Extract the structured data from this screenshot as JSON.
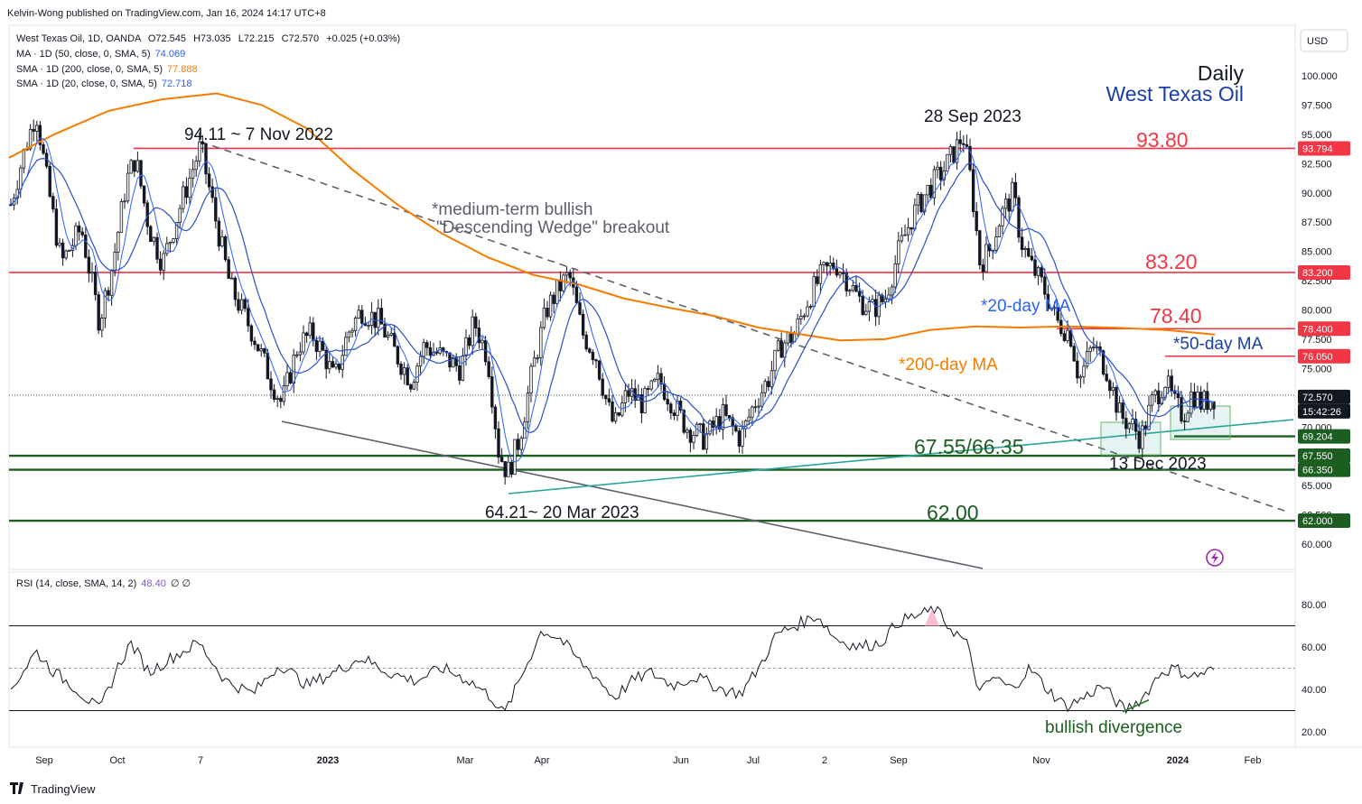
{
  "header": {
    "published": "Kelvin-Wong published on TradingView.com, Jan 16, 2024 14:17 UTC+8",
    "symbol_line": "West Texas Oil, 1D, OANDA",
    "ohlc": {
      "o": "O72.545",
      "h": "H73.035",
      "l": "L72.215",
      "c": "C72.570",
      "chg": "+0.025 (+0.03%)"
    },
    "ma50": {
      "label": "MA · 1D (50, close, 0, SMA, 5)",
      "value": "74.069",
      "color": "#2962ff"
    },
    "sma200": {
      "label": "SMA · 1D (200, close, 0, SMA, 5)",
      "value": "77.888",
      "color": "#f57c00"
    },
    "sma20": {
      "label": "SMA · 1D (20, close, 0, SMA, 5)",
      "value": "72.718",
      "color": "#2962ff"
    }
  },
  "title": {
    "line1": "Daily",
    "line2": "West Texas Oil"
  },
  "currency": "USD",
  "rsi_legend": {
    "label": "RSI (14, close, SMA, 14, 2)",
    "value": "48.40",
    "extra": "∅ ∅"
  },
  "annotations": {
    "high_2022": "94.11 ~ 7 Nov 2022",
    "high_2023": "28 Sep 2023",
    "wedge_line1": "*medium-term bullish",
    "wedge_line2": "\"Descending Wedge\" breakout",
    "ma20": "*20-day MA",
    "ma50": "*50-day MA",
    "ma200": "*200-day MA",
    "low_mar": "64.21~ 20 Mar 2023",
    "low_dec": "13 Dec 2023",
    "support": "67.55/66.35",
    "lvl_9380": "93.80",
    "lvl_8320": "83.20",
    "lvl_7840": "78.40",
    "lvl_6200": "62.00",
    "divergence": "bullish divergence"
  },
  "price_tags": [
    {
      "text": "93.794",
      "color": "#f23645"
    },
    {
      "text": "83.200",
      "color": "#f23645"
    },
    {
      "text": "78.400",
      "color": "#f23645"
    },
    {
      "text": "76.050",
      "color": "#f23645"
    },
    {
      "text": "72.570",
      "color": "#131722"
    },
    {
      "text": "15:42:26",
      "color": "#131722"
    },
    {
      "text": "69.204",
      "color": "#1b5e20"
    },
    {
      "text": "67.550",
      "color": "#1b5e20"
    },
    {
      "text": "66.350",
      "color": "#1b5e20"
    },
    {
      "text": "62.000",
      "color": "#1b5e20"
    }
  ],
  "branding": "TradingView",
  "chart_data": {
    "type": "candlestick",
    "symbol": "West Texas Oil",
    "timeframe": "1D",
    "price_axis": {
      "range": [
        58.5,
        102.5
      ],
      "ticks": [
        "100.000",
        "97.500",
        "95.000",
        "92.500",
        "90.000",
        "87.500",
        "85.000",
        "82.500",
        "80.000",
        "77.500",
        "75.000",
        "72.500",
        "70.000",
        "67.500",
        "65.000",
        "62.500",
        "60.000"
      ]
    },
    "time_axis": [
      "Sep",
      "Oct",
      "7",
      "2023",
      "Mar",
      "Apr",
      "Jun",
      "Jul",
      "2",
      "Sep",
      "Nov",
      "2024",
      "Feb"
    ],
    "horizontal_levels": [
      {
        "value": 93.8,
        "color": "#f23645"
      },
      {
        "value": 83.2,
        "color": "#f23645"
      },
      {
        "value": 78.4,
        "color": "#f23645"
      },
      {
        "value": 76.05,
        "color": "#f23645"
      },
      {
        "value": 69.204,
        "color": "#1b5e20"
      },
      {
        "value": 67.55,
        "color": "#1b5e20"
      },
      {
        "value": 66.35,
        "color": "#1b5e20"
      },
      {
        "value": 62.0,
        "color": "#1b5e20"
      }
    ],
    "rsi": {
      "ticks": [
        "80.00",
        "60.00",
        "40.00",
        "20.00"
      ],
      "overbought": 70,
      "oversold": 30,
      "mid": 50,
      "range": [
        15,
        85
      ]
    },
    "last": {
      "close": 72.57,
      "sma20": 72.718,
      "ma50": 74.069,
      "sma200": 77.888,
      "rsi": 48.4
    }
  }
}
